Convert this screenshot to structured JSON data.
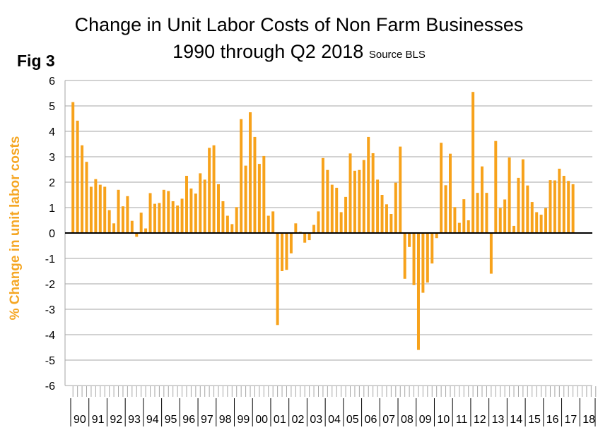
{
  "title_line1": "Change in Unit Labor Costs of Non Farm Businesses",
  "title_line2": "1990 through Q2 2018",
  "source_note": "Source BLS",
  "fig_label": "Fig 3",
  "colors": {
    "bar": "#F7A21B",
    "ylabel": "#F5A623",
    "grid": "#A6A6A6",
    "zero_line": "#000000"
  },
  "chart_data": {
    "type": "bar",
    "title": "Change in Unit Labor Costs of Non Farm Businesses 1990 through Q2 2018",
    "xlabel": "",
    "ylabel": "% Change in unit labor costs",
    "ylim": [
      -6,
      6
    ],
    "yticks": [
      "6",
      "5",
      "4",
      "3",
      "2",
      "1",
      "0",
      "-1",
      "-2",
      "-3",
      "-4",
      "-5",
      "-6"
    ],
    "grid": true,
    "year_labels": [
      "90",
      "91",
      "92",
      "93",
      "94",
      "95",
      "96",
      "97",
      "98",
      "99",
      "00",
      "01",
      "02",
      "03",
      "04",
      "05",
      "06",
      "07",
      "08",
      "09",
      "10",
      "11",
      "12",
      "13",
      "14",
      "15",
      "16",
      "17",
      "18"
    ],
    "quarters_per_year": 4,
    "values": [
      5.15,
      4.42,
      3.45,
      2.8,
      1.82,
      2.12,
      1.9,
      1.82,
      0.9,
      0.38,
      1.7,
      1.05,
      1.45,
      0.48,
      -0.15,
      0.8,
      0.18,
      1.57,
      1.15,
      1.18,
      1.7,
      1.65,
      1.25,
      1.08,
      1.35,
      2.25,
      1.75,
      1.55,
      2.35,
      2.1,
      3.35,
      3.45,
      1.92,
      1.25,
      0.68,
      0.35,
      1.02,
      4.48,
      2.65,
      4.75,
      3.78,
      2.72,
      3.03,
      0.68,
      0.85,
      -3.62,
      -1.5,
      -1.45,
      -0.8,
      0.38,
      0.05,
      -0.38,
      -0.28,
      0.32,
      0.85,
      2.95,
      2.48,
      1.9,
      1.78,
      0.82,
      1.42,
      3.13,
      2.45,
      2.48,
      2.87,
      3.78,
      3.14,
      2.1,
      1.5,
      1.13,
      0.75,
      1.98,
      3.4,
      -1.8,
      -0.55,
      -2.05,
      -4.6,
      -2.35,
      -1.95,
      -1.2,
      -0.2,
      3.55,
      1.88,
      3.12,
      1.02,
      0.4,
      1.33,
      0.5,
      5.55,
      1.58,
      2.62,
      1.58,
      -1.6,
      3.62,
      0.98,
      1.32,
      2.97,
      0.28,
      2.17,
      2.9,
      1.87,
      1.22,
      0.82,
      0.72,
      0.98,
      2.08,
      2.07,
      2.53,
      2.25,
      2.05,
      1.92
    ]
  }
}
